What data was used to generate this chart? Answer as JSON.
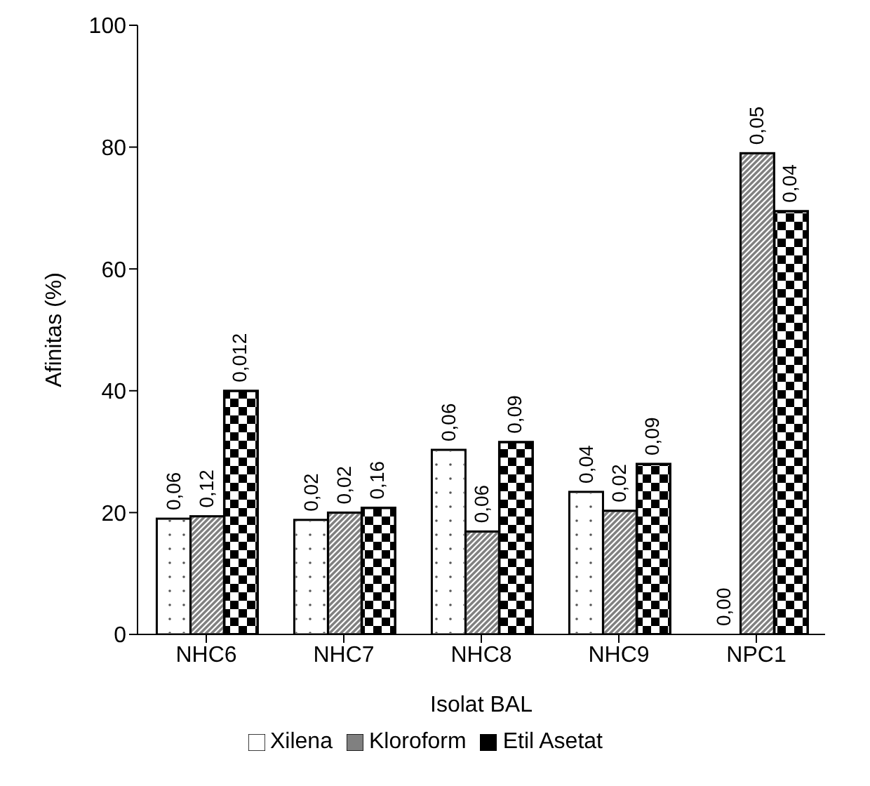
{
  "chart_data": {
    "type": "bar",
    "xlabel": "Isolat BAL",
    "ylabel": "Afinitas (%)",
    "categories": [
      "NHC6",
      "NHC7",
      "NHC8",
      "NHC9",
      "NPC1"
    ],
    "series": [
      {
        "name": "Xilena",
        "color": "#ffffff",
        "values": [
          19,
          18.8,
          30.3,
          23.4,
          0
        ]
      },
      {
        "name": "Kloroform",
        "color": "#808080",
        "values": [
          19.4,
          20,
          16.9,
          20.3,
          79
        ]
      },
      {
        "name": "Etil Asetat",
        "color": "#000000",
        "values": [
          40,
          20.8,
          31.6,
          28,
          69.5
        ]
      }
    ],
    "annotations": [
      "0,06",
      "0,12",
      "0,012",
      "0,02",
      "0,02",
      "0,16",
      "0,06",
      "0,06",
      "0,09",
      "0,04",
      "0,02",
      "0,09",
      "0,00",
      "0,05",
      "0,04"
    ],
    "ylim": [
      0,
      100
    ],
    "yticks": [
      0,
      20,
      40,
      60,
      80,
      100
    ],
    "grid": false,
    "legend": "bottom"
  }
}
